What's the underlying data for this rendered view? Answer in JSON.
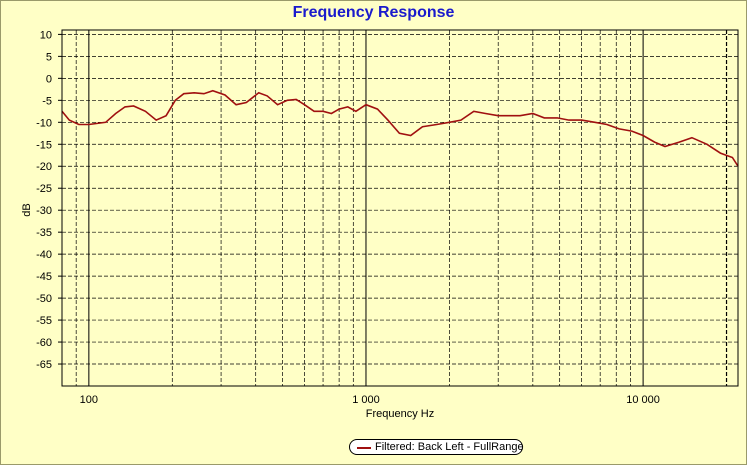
{
  "chart_data": {
    "type": "line",
    "title": "Frequency Response",
    "xlabel": "Frequency Hz",
    "ylabel": "dB",
    "xscale": "log",
    "xlim": [
      80,
      22000
    ],
    "ylim": [
      -70,
      11
    ],
    "x_ticks": [
      {
        "value": 100,
        "label": "100"
      },
      {
        "value": 1000,
        "label": "1 000"
      },
      {
        "value": 10000,
        "label": "10 000"
      }
    ],
    "y_ticks": [
      10,
      5,
      0,
      -5,
      -10,
      -15,
      -20,
      -25,
      -30,
      -35,
      -40,
      -45,
      -50,
      -55,
      -60,
      -65
    ],
    "grid": true,
    "legend_position": "bottom-center",
    "series": [
      {
        "name": "Filtered: Back Left - FullRange",
        "color": "#a01010",
        "x": [
          80,
          85,
          92,
          100,
          115,
          125,
          135,
          145,
          160,
          175,
          190,
          205,
          220,
          240,
          260,
          280,
          310,
          340,
          370,
          410,
          440,
          480,
          520,
          560,
          600,
          650,
          700,
          750,
          800,
          860,
          920,
          1000,
          1100,
          1200,
          1320,
          1450,
          1600,
          1800,
          2000,
          2200,
          2450,
          2700,
          3000,
          3300,
          3600,
          4000,
          4400,
          4900,
          5400,
          6000,
          6700,
          7400,
          8200,
          9100,
          10000,
          11000,
          12000,
          13500,
          15000,
          17000,
          19000,
          21000,
          22000
        ],
        "y": [
          -7.5,
          -9.5,
          -10.5,
          -10.5,
          -10,
          -8,
          -6.5,
          -6.3,
          -7.5,
          -9.5,
          -8.5,
          -5,
          -3.5,
          -3.3,
          -3.5,
          -2.8,
          -3.8,
          -6,
          -5.5,
          -3.3,
          -4,
          -6,
          -5,
          -4.8,
          -6,
          -7.5,
          -7.5,
          -8,
          -7,
          -6.5,
          -7.5,
          -6,
          -7,
          -9.5,
          -12.5,
          -13,
          -11,
          -10.5,
          -10,
          -9.5,
          -7.5,
          -8,
          -8.5,
          -8.5,
          -8.5,
          -8,
          -9,
          -9,
          -9.5,
          -9.5,
          -10,
          -10.5,
          -11.5,
          -12,
          -13,
          -14.5,
          -15.5,
          -14.5,
          -13.5,
          -15,
          -17,
          -18,
          -20
        ]
      }
    ]
  }
}
